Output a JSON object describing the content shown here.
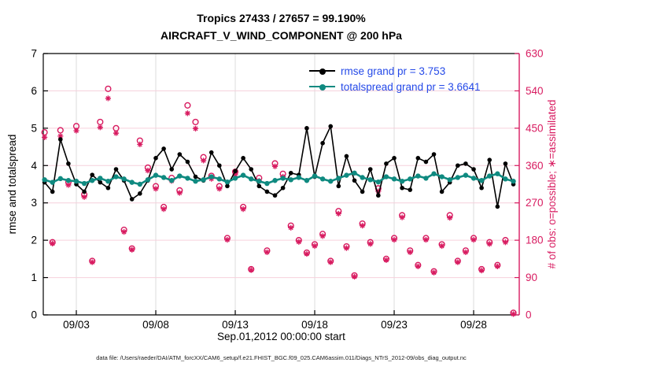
{
  "chart_data": {
    "type": "line",
    "title": "Tropics 27433 / 27657 = 99.190%",
    "subtitle": "AIRCRAFT_V_WIND_COMPONENT @ 200 hPa",
    "xlabel": "Sep.01,2012 00:00:00 start",
    "x_tick_labels": [
      "09/03",
      "09/08",
      "09/13",
      "09/18",
      "09/23",
      "09/28"
    ],
    "x_tick_days": [
      3,
      8,
      13,
      18,
      23,
      28
    ],
    "x_domain_days": [
      0.92,
      30.87
    ],
    "grid": {
      "horizontal_color": "#f6d0dc",
      "vertical_color": "#dcdcdc"
    },
    "left_axis": {
      "label": "rmse and totalspread",
      "lim": [
        0,
        7
      ],
      "ticks": [
        0,
        1,
        2,
        3,
        4,
        5,
        6,
        7
      ],
      "color": "#000000"
    },
    "right_axis": {
      "label": "# of obs: o=possible; ∗=assimilated",
      "lim": [
        0,
        630
      ],
      "ticks": [
        0,
        90,
        180,
        270,
        360,
        450,
        540,
        630
      ],
      "color": "#d81b60"
    },
    "x_days": [
      1,
      1.5,
      2,
      2.5,
      3,
      3.5,
      4,
      4.5,
      5,
      5.5,
      6,
      6.5,
      7,
      7.5,
      8,
      8.5,
      9,
      9.5,
      10,
      10.5,
      11,
      11.5,
      12,
      12.5,
      13,
      13.5,
      14,
      14.5,
      15,
      15.5,
      16,
      16.5,
      17,
      17.5,
      18,
      18.5,
      19,
      19.5,
      20,
      20.5,
      21,
      21.5,
      22,
      22.5,
      23,
      23.5,
      24,
      24.5,
      25,
      25.5,
      26,
      26.5,
      27,
      27.5,
      28,
      28.5,
      29,
      29.5,
      30,
      30.5
    ],
    "series": [
      {
        "name": "rmse",
        "axis": "left",
        "color": "#000000",
        "marker": "circle-filled",
        "grand_pr": 3.753,
        "values": [
          3.55,
          3.3,
          4.7,
          4.05,
          3.5,
          3.3,
          3.75,
          3.55,
          3.4,
          3.9,
          3.6,
          3.1,
          3.25,
          3.6,
          4.2,
          4.45,
          3.9,
          4.3,
          4.1,
          3.7,
          3.6,
          4.35,
          4.0,
          3.45,
          3.85,
          4.2,
          3.9,
          3.45,
          3.3,
          3.2,
          3.4,
          3.8,
          3.75,
          5.0,
          3.7,
          4.6,
          5.05,
          3.45,
          4.25,
          3.6,
          3.3,
          3.9,
          3.2,
          4.05,
          4.2,
          3.4,
          3.35,
          4.2,
          4.1,
          4.3,
          3.3,
          3.55,
          4.0,
          4.05,
          3.9,
          3.4,
          4.15,
          2.9,
          4.05,
          3.5
        ]
      },
      {
        "name": "totalspread",
        "axis": "left",
        "color": "#0f8a80",
        "marker": "circle-filled",
        "grand_pr": 3.6641,
        "values": [
          3.62,
          3.55,
          3.65,
          3.6,
          3.58,
          3.52,
          3.6,
          3.66,
          3.58,
          3.7,
          3.64,
          3.55,
          3.5,
          3.62,
          3.74,
          3.68,
          3.6,
          3.72,
          3.66,
          3.58,
          3.62,
          3.7,
          3.64,
          3.56,
          3.66,
          3.74,
          3.64,
          3.58,
          3.52,
          3.6,
          3.66,
          3.62,
          3.68,
          3.6,
          3.72,
          3.64,
          3.58,
          3.66,
          3.74,
          3.8,
          3.68,
          3.62,
          3.56,
          3.7,
          3.64,
          3.58,
          3.64,
          3.72,
          3.66,
          3.78,
          3.7,
          3.62,
          3.68,
          3.74,
          3.66,
          3.6,
          3.72,
          3.78,
          3.64,
          3.58
        ]
      },
      {
        "name": "possible",
        "axis": "right",
        "color": "#d81b60",
        "marker": "circle-open",
        "values": [
          440,
          175,
          445,
          320,
          455,
          290,
          130,
          465,
          545,
          450,
          205,
          160,
          420,
          355,
          310,
          260,
          330,
          300,
          505,
          465,
          380,
          335,
          310,
          185,
          345,
          260,
          110,
          330,
          155,
          365,
          340,
          215,
          180,
          150,
          170,
          195,
          130,
          250,
          165,
          95,
          220,
          175,
          305,
          135,
          185,
          240,
          155,
          120,
          185,
          105,
          170,
          240,
          130,
          155,
          185,
          110,
          175,
          120,
          180,
          5
        ]
      },
      {
        "name": "assimilated",
        "axis": "right",
        "color": "#d81b60",
        "marker": "star",
        "values": [
          428,
          172,
          431,
          313,
          444,
          284,
          127,
          452,
          522,
          438,
          200,
          157,
          411,
          348,
          304,
          255,
          323,
          294,
          486,
          449,
          372,
          328,
          304,
          181,
          338,
          255,
          108,
          323,
          151,
          358,
          333,
          210,
          176,
          147,
          166,
          190,
          127,
          244,
          161,
          92,
          215,
          171,
          298,
          132,
          181,
          235,
          151,
          117,
          181,
          102,
          166,
          234,
          127,
          151,
          181,
          107,
          171,
          117,
          175,
          2
        ]
      }
    ]
  },
  "legend": {
    "rmse_label": "rmse grand pr = 3.753",
    "totalspread_label": "totalspread grand pr = 3.6641",
    "text_color": "#2449e8"
  },
  "footer": {
    "data_file": "data file: /Users/raeder/DAI/ATM_forcXX/CAM6_setup/f.e21.FHIST_BGC.f09_025.CAM6assim.011/Diags_NTrS_2012-09/obs_diag_output.nc"
  }
}
